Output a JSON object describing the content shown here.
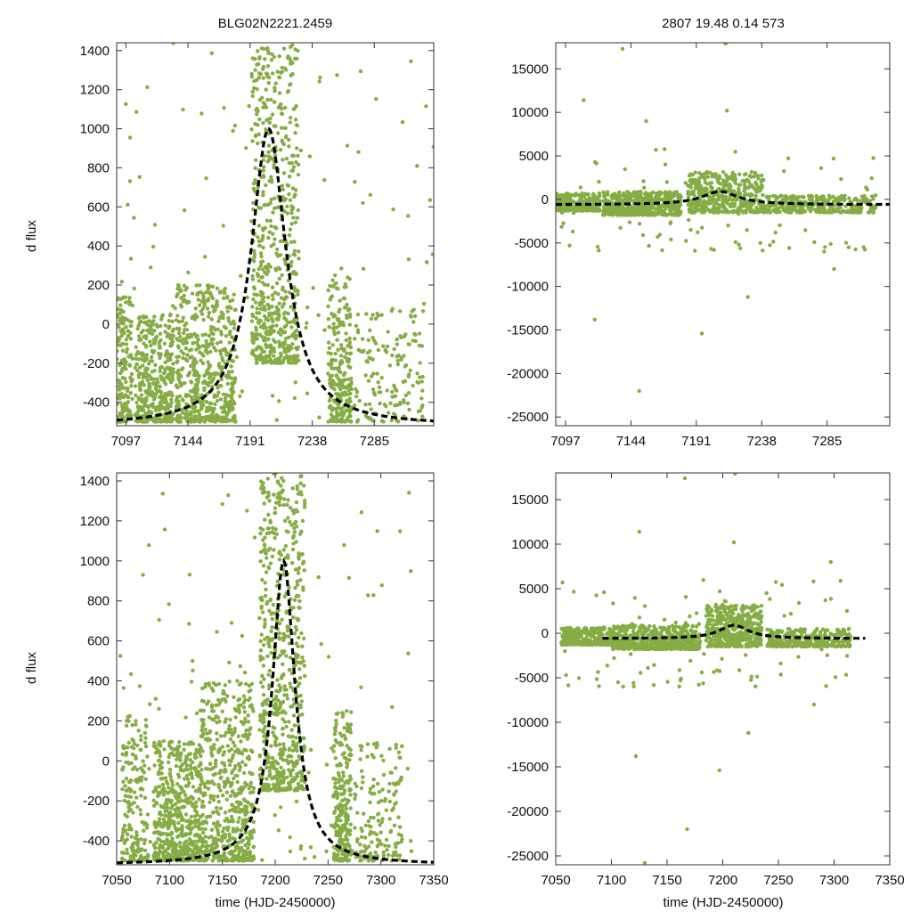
{
  "figure": {
    "title_left": "BLG02N2221.2459",
    "title_right": "2807  19.48  0.14  573",
    "ylabel": "d flux",
    "xlabel": "time (HJD-2450000)"
  },
  "colors": {
    "points": "#86ad45",
    "fit": "#000000",
    "frame": "#333333"
  },
  "chart_data": [
    {
      "type": "scatter",
      "panel": "top-left",
      "xlim": [
        7090,
        7330
      ],
      "ylim": [
        -520,
        1440
      ],
      "xticks": [
        7097,
        7144,
        7191,
        7238,
        7285
      ],
      "yticks": [
        -400,
        -200,
        0,
        200,
        400,
        600,
        800,
        1000,
        1200,
        1400
      ],
      "series": [
        {
          "name": "observations",
          "kind": "points",
          "clusters": [
            {
              "x0": 7090,
              "x1": 7102,
              "ymin": -500,
              "ymax": 150,
              "n": 160
            },
            {
              "x0": 7104,
              "x1": 7133,
              "ymin": -500,
              "ymax": 50,
              "n": 380
            },
            {
              "x0": 7135,
              "x1": 7180,
              "ymin": -500,
              "ymax": 200,
              "n": 560
            },
            {
              "x0": 7192,
              "x1": 7228,
              "ymin": -200,
              "ymax": 1440,
              "n": 620
            },
            {
              "x0": 7250,
              "x1": 7268,
              "ymin": -500,
              "ymax": 250,
              "n": 240
            },
            {
              "x0": 7270,
              "x1": 7322,
              "ymin": -500,
              "ymax": 80,
              "n": 150
            },
            {
              "x0": 7090,
              "x1": 7330,
              "ymin": -500,
              "ymax": 1440,
              "n": 130
            }
          ]
        },
        {
          "name": "model",
          "kind": "fit",
          "peak_x": 7205,
          "baseline": -520,
          "amplitude": 1520,
          "width": 16
        }
      ]
    },
    {
      "type": "scatter",
      "panel": "top-right",
      "xlim": [
        7090,
        7330
      ],
      "ylim": [
        -26000,
        18000
      ],
      "xticks": [
        7097,
        7144,
        7191,
        7238,
        7285
      ],
      "yticks": [
        -25000,
        -20000,
        -15000,
        -10000,
        -5000,
        0,
        5000,
        10000,
        15000
      ],
      "series": [
        {
          "name": "observations",
          "kind": "points",
          "clusters": [
            {
              "x0": 7090,
              "x1": 7122,
              "ymin": -1300,
              "ymax": 700,
              "n": 260
            },
            {
              "x0": 7124,
              "x1": 7180,
              "ymin": -1800,
              "ymax": 900,
              "n": 520
            },
            {
              "x0": 7185,
              "x1": 7240,
              "ymin": -1500,
              "ymax": 3200,
              "n": 420
            },
            {
              "x0": 7240,
              "x1": 7320,
              "ymin": -1500,
              "ymax": 500,
              "n": 300
            },
            {
              "x0": 7090,
              "x1": 7325,
              "ymin": -6000,
              "ymax": 6000,
              "n": 90
            }
          ],
          "outliers": [
            [
              7118,
              -13800
            ],
            [
              7150,
              -22000
            ],
            [
              7195,
              -15400
            ],
            [
              7213,
              10200
            ],
            [
              7155,
              9000
            ],
            [
              7138,
              17300
            ],
            [
              7212,
              17900
            ],
            [
              7110,
              11400
            ],
            [
              7290,
              -8000
            ],
            [
              7228,
              -11200
            ],
            [
              7162,
              5700
            ]
          ]
        },
        {
          "name": "model",
          "kind": "fit",
          "peak_x": 7208,
          "baseline": -600,
          "amplitude": 1500,
          "width": 16
        }
      ]
    },
    {
      "type": "scatter",
      "panel": "bottom-left",
      "xlim": [
        7050,
        7350
      ],
      "ylim": [
        -520,
        1440
      ],
      "xticks": [
        7050,
        7100,
        7150,
        7200,
        7250,
        7300,
        7350
      ],
      "yticks": [
        -400,
        -200,
        0,
        200,
        400,
        600,
        800,
        1000,
        1200,
        1400
      ],
      "series": [
        {
          "name": "observations",
          "kind": "points",
          "clusters": [
            {
              "x0": 7055,
              "x1": 7080,
              "ymin": -500,
              "ymax": 250,
              "n": 180
            },
            {
              "x0": 7085,
              "x1": 7130,
              "ymin": -500,
              "ymax": 100,
              "n": 520
            },
            {
              "x0": 7130,
              "x1": 7180,
              "ymin": -500,
              "ymax": 400,
              "n": 560
            },
            {
              "x0": 7185,
              "x1": 7228,
              "ymin": -150,
              "ymax": 1440,
              "n": 620
            },
            {
              "x0": 7255,
              "x1": 7272,
              "ymin": -500,
              "ymax": 250,
              "n": 240
            },
            {
              "x0": 7275,
              "x1": 7320,
              "ymin": -500,
              "ymax": 100,
              "n": 150
            },
            {
              "x0": 7050,
              "x1": 7330,
              "ymin": -500,
              "ymax": 1440,
              "n": 130
            }
          ]
        },
        {
          "name": "model",
          "kind": "fit",
          "peak_x": 7208,
          "baseline": -520,
          "amplitude": 1520,
          "width": 13
        }
      ]
    },
    {
      "type": "scatter",
      "panel": "bottom-right",
      "xlim": [
        7050,
        7350
      ],
      "ylim": [
        -26000,
        18000
      ],
      "xticks": [
        7050,
        7100,
        7150,
        7200,
        7250,
        7300,
        7350
      ],
      "yticks": [
        -25000,
        -20000,
        -15000,
        -10000,
        -5000,
        0,
        5000,
        10000,
        15000
      ],
      "series": [
        {
          "name": "observations",
          "kind": "points",
          "clusters": [
            {
              "x0": 7055,
              "x1": 7100,
              "ymin": -1300,
              "ymax": 700,
              "n": 300
            },
            {
              "x0": 7100,
              "x1": 7180,
              "ymin": -1800,
              "ymax": 900,
              "n": 560
            },
            {
              "x0": 7185,
              "x1": 7235,
              "ymin": -1500,
              "ymax": 3200,
              "n": 420
            },
            {
              "x0": 7240,
              "x1": 7315,
              "ymin": -1500,
              "ymax": 500,
              "n": 300
            },
            {
              "x0": 7055,
              "x1": 7320,
              "ymin": -6000,
              "ymax": 6000,
              "n": 90
            }
          ],
          "outliers": [
            [
              7130,
              -25800
            ],
            [
              7122,
              -13800
            ],
            [
              7168,
              -22000
            ],
            [
              7197,
              -15400
            ],
            [
              7223,
              -11200
            ],
            [
              7282,
              -8000
            ],
            [
              7210,
              10200
            ],
            [
              7125,
              11400
            ],
            [
              7166,
              17400
            ],
            [
              7211,
              17900
            ],
            [
              7297,
              8000
            ],
            [
              7106,
              -5500
            ]
          ]
        },
        {
          "name": "model",
          "kind": "fit",
          "peak_x": 7210,
          "baseline": -600,
          "amplitude": 1500,
          "width": 16,
          "x_range": [
            7092,
            7328
          ]
        }
      ]
    }
  ]
}
